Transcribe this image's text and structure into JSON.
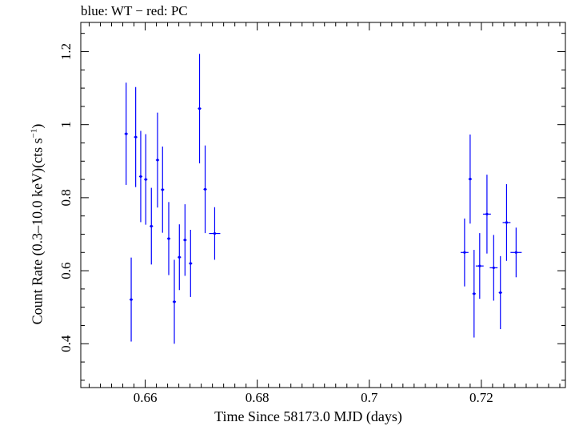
{
  "chart_data": {
    "type": "scatter",
    "title": "blue: WT − red: PC",
    "xlabel": "Time Since 58173.0 MJD (days)",
    "ylabel": "Count Rate (0.3–10.0 keV)(cts s",
    "ylabel_unit_sup": "−1",
    "ylabel_suffix": ")",
    "xlim": [
      0.6485,
      0.735
    ],
    "ylim": [
      0.28,
      1.28
    ],
    "xticks": [
      0.66,
      0.68,
      0.7,
      0.72
    ],
    "xtick_labels": [
      "0.66",
      "0.68",
      "0.7",
      "0.72"
    ],
    "yticks": [
      0.4,
      0.6,
      0.8,
      1.0,
      1.2
    ],
    "ytick_labels": [
      "0.4",
      "0.6",
      "0.8",
      "1",
      "1.2"
    ],
    "grid": false,
    "series": [
      {
        "color": "#0000ff",
        "points": [
          {
            "x": 0.6566,
            "y": 0.975,
            "xerr": 0.0003,
            "yerr": 0.14
          },
          {
            "x": 0.6575,
            "y": 0.521,
            "xerr": 0.0003,
            "yerr": 0.115
          },
          {
            "x": 0.6583,
            "y": 0.966,
            "xerr": 0.0003,
            "yerr": 0.137
          },
          {
            "x": 0.6592,
            "y": 0.858,
            "xerr": 0.0003,
            "yerr": 0.125
          },
          {
            "x": 0.6601,
            "y": 0.85,
            "xerr": 0.0003,
            "yerr": 0.124
          },
          {
            "x": 0.6611,
            "y": 0.722,
            "xerr": 0.0003,
            "yerr": 0.105
          },
          {
            "x": 0.6622,
            "y": 0.903,
            "xerr": 0.0003,
            "yerr": 0.13
          },
          {
            "x": 0.6631,
            "y": 0.822,
            "xerr": 0.0003,
            "yerr": 0.118
          },
          {
            "x": 0.6642,
            "y": 0.688,
            "xerr": 0.0003,
            "yerr": 0.1
          },
          {
            "x": 0.6652,
            "y": 0.515,
            "xerr": 0.0003,
            "yerr": 0.115
          },
          {
            "x": 0.6661,
            "y": 0.637,
            "xerr": 0.0003,
            "yerr": 0.09
          },
          {
            "x": 0.6671,
            "y": 0.684,
            "xerr": 0.0003,
            "yerr": 0.098
          },
          {
            "x": 0.6681,
            "y": 0.62,
            "xerr": 0.0003,
            "yerr": 0.092
          },
          {
            "x": 0.6697,
            "y": 1.044,
            "xerr": 0.0003,
            "yerr": 0.15
          },
          {
            "x": 0.6707,
            "y": 0.823,
            "xerr": 0.0003,
            "yerr": 0.12
          },
          {
            "x": 0.6724,
            "y": 0.702,
            "xerr": 0.001,
            "yerr": 0.072
          },
          {
            "x": 0.717,
            "y": 0.65,
            "xerr": 0.0007,
            "yerr": 0.093
          },
          {
            "x": 0.718,
            "y": 0.851,
            "xerr": 0.0003,
            "yerr": 0.122
          },
          {
            "x": 0.7187,
            "y": 0.537,
            "xerr": 0.0003,
            "yerr": 0.12
          },
          {
            "x": 0.7197,
            "y": 0.613,
            "xerr": 0.0007,
            "yerr": 0.09
          },
          {
            "x": 0.721,
            "y": 0.755,
            "xerr": 0.0007,
            "yerr": 0.108
          },
          {
            "x": 0.7222,
            "y": 0.608,
            "xerr": 0.0007,
            "yerr": 0.09
          },
          {
            "x": 0.7234,
            "y": 0.54,
            "xerr": 0.0003,
            "yerr": 0.1
          },
          {
            "x": 0.7245,
            "y": 0.732,
            "xerr": 0.0007,
            "yerr": 0.105
          },
          {
            "x": 0.7262,
            "y": 0.65,
            "xerr": 0.001,
            "yerr": 0.068
          }
        ]
      }
    ]
  }
}
